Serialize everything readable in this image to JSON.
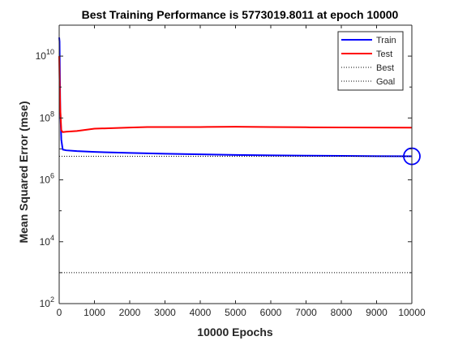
{
  "chart_data": {
    "type": "line",
    "title": "Best Training Performance is 5773019.8011 at epoch 10000",
    "xlabel": "10000 Epochs",
    "ylabel": "Mean Squared Error  (mse)",
    "xlim": [
      0,
      10000
    ],
    "ylim": [
      100,
      100000000000
    ],
    "yscale": "log",
    "x_ticks": [
      0,
      1000,
      2000,
      3000,
      4000,
      5000,
      6000,
      7000,
      8000,
      9000,
      10000
    ],
    "y_ticks": [
      {
        "value": 100,
        "base": "10",
        "exp": "2"
      },
      {
        "value": 10000,
        "base": "10",
        "exp": "4"
      },
      {
        "value": 1000000,
        "base": "10",
        "exp": "6"
      },
      {
        "value": 100000000,
        "base": "10",
        "exp": "8"
      },
      {
        "value": 10000000000,
        "base": "10",
        "exp": "10"
      }
    ],
    "legend_position": "top-right",
    "series": [
      {
        "name": "Train",
        "color": "#0000ff",
        "style": "solid",
        "x": [
          0,
          10,
          30,
          60,
          100,
          200,
          500,
          1000,
          2000,
          3000,
          4000,
          5000,
          6000,
          7000,
          8000,
          9000,
          10000
        ],
        "y": [
          40000000000,
          30000000000,
          200000000,
          20000000,
          9500000,
          9000000,
          8500000,
          8000000,
          7400000,
          7000000,
          6700000,
          6400000,
          6200000,
          6050000,
          5950000,
          5850000,
          5773019.8011
        ]
      },
      {
        "name": "Test",
        "color": "#ff0000",
        "style": "solid",
        "x": [
          0,
          10,
          30,
          60,
          100,
          200,
          500,
          1000,
          2000,
          2500,
          3000,
          4000,
          5000,
          6000,
          7000,
          8000,
          9000,
          10000
        ],
        "y": [
          10000000000,
          2000000000,
          200000000,
          40000000,
          35000000,
          36000000,
          38000000,
          45000000,
          49000000,
          51000000,
          51000000,
          51000000,
          52000000,
          51000000,
          50000000,
          49500000,
          49000000,
          48500000
        ]
      },
      {
        "name": "Best",
        "color": "#000000",
        "style": "dotted",
        "x": [
          0,
          10000
        ],
        "y": [
          5773019.8011,
          5773019.8011
        ]
      },
      {
        "name": "Goal",
        "color": "#000000",
        "style": "dotted",
        "x": [
          0,
          10000
        ],
        "y": [
          1000,
          1000
        ]
      }
    ],
    "best_point": {
      "x": 10000,
      "y": 5773019.8011,
      "color": "#0000ff"
    }
  }
}
